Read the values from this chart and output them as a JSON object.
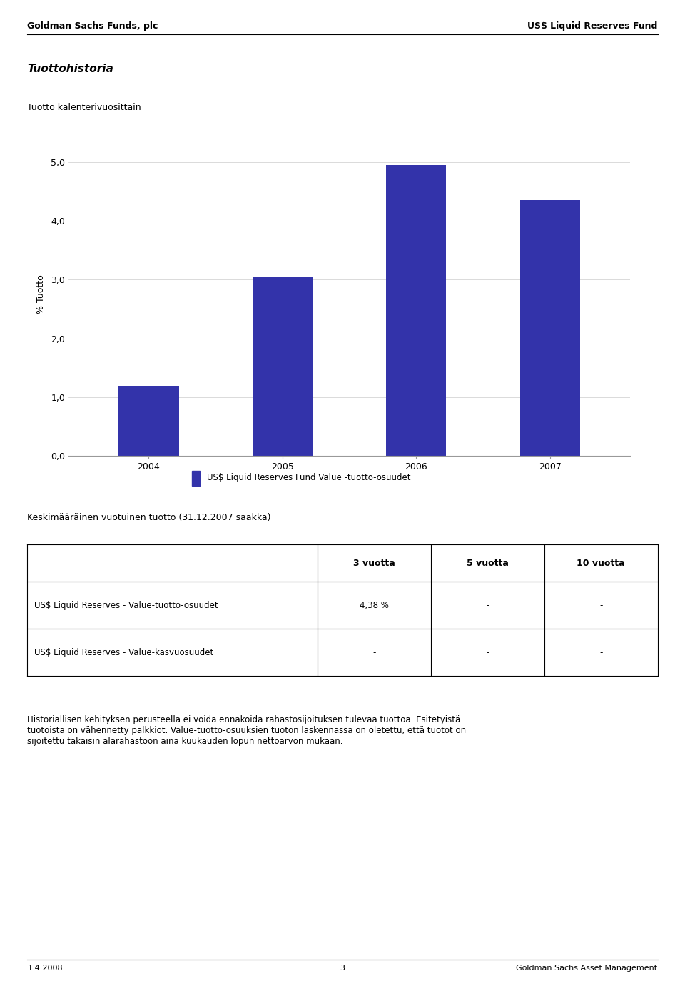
{
  "header_left": "Goldman Sachs Funds, plc",
  "header_right": "US$ Liquid Reserves Fund",
  "section_title": "Tuottohistoria",
  "chart_subtitle": "Tuotto kalenterivuosittain",
  "bar_years": [
    "2004",
    "2005",
    "2006",
    "2007"
  ],
  "bar_values": [
    1.2,
    3.05,
    4.95,
    4.35
  ],
  "bar_color": "#3333AA",
  "ylabel": "% Tuotto",
  "yticks": [
    0.0,
    1.0,
    2.0,
    3.0,
    4.0,
    5.0
  ],
  "ytick_labels": [
    "0,0",
    "1,0",
    "2,0",
    "3,0",
    "4,0",
    "5,0"
  ],
  "ylim": [
    0,
    5.5
  ],
  "legend_label": "US$ Liquid Reserves Fund Value -tuotto-osuudet",
  "avg_return_label": "Keskimääräinen vuotuinen tuotto (31.12.2007 saakka)",
  "table_col_headers": [
    "3 vuotta",
    "5 vuotta",
    "10 vuotta"
  ],
  "table_row1_label": "US$ Liquid Reserves - Value-tuotto-osuudet",
  "table_row1_values": [
    "4,38 %",
    "-",
    "-"
  ],
  "table_row2_label": "US$ Liquid Reserves - Value-kasvuosuudet",
  "table_row2_values": [
    "-",
    "-",
    "-"
  ],
  "disclaimer_text": "Historiallisen kehityksen perusteella ei voida ennakoida rahastosijoituksen tulevaa tuottoa. Esitetyistä tuotoista on vähennetty palkkiot. Value-tuotto-osuuksien tuoton laskennassa on oletettu, että tuotot on sijoitettu takaisin alarahastoon aina kuukauden lopun nettoarvon mukaan.",
  "footer_left": "1.4.2008",
  "footer_center": "3",
  "footer_right": "Goldman Sachs Asset Management"
}
